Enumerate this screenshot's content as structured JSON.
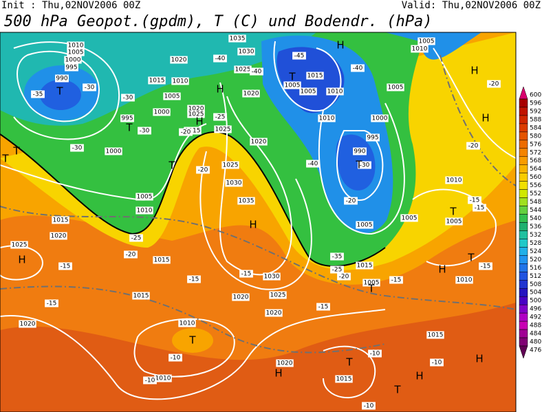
{
  "header": {
    "init": "Init : Thu,02NOV2006 00Z",
    "valid": "Valid: Thu,02NOV2006 00Z",
    "title": "500 hPa Geopot.(gpdm), T (C) und Bodendr. (hPa)"
  },
  "legend": {
    "levels": [
      600,
      596,
      592,
      588,
      584,
      580,
      576,
      572,
      568,
      564,
      560,
      556,
      552,
      548,
      544,
      540,
      536,
      532,
      528,
      524,
      520,
      516,
      512,
      508,
      504,
      500,
      496,
      492,
      488,
      484,
      480,
      476
    ],
    "colors": [
      "#d8006e",
      "#a80000",
      "#c01400",
      "#d02800",
      "#dc3c00",
      "#e45400",
      "#ec6c00",
      "#f48400",
      "#f89c00",
      "#f8b400",
      "#f8cc00",
      "#f0e000",
      "#d0e800",
      "#a0e020",
      "#64d040",
      "#34c050",
      "#20b070",
      "#20c0a0",
      "#20c8c8",
      "#20b0e8",
      "#2094f0",
      "#2074e8",
      "#2054e0",
      "#2034d0",
      "#2414c0",
      "#4800c4",
      "#8000c8",
      "#b000c4",
      "#c800b4",
      "#a00094",
      "#800074",
      "#600054"
    ]
  },
  "map": {
    "pressure_labels": [
      "1010",
      "1005",
      "1000",
      "995",
      "990",
      "1020",
      "1015",
      "1010",
      "1005",
      "1000",
      "995",
      "1020",
      "1025",
      "1000",
      "1005",
      "1010",
      "1015",
      "1020",
      "1025",
      "1035",
      "1030",
      "1025",
      "1020",
      "1020",
      "1025",
      "1030",
      "1035",
      "1005",
      "1005",
      "1010",
      "1015",
      "1010",
      "1005",
      "1000",
      "995",
      "990",
      "1005",
      "1005",
      "1005",
      "1010",
      "1015",
      "1005",
      "1010",
      "1015",
      "1030",
      "1025",
      "1020",
      "1020",
      "1015",
      "1020",
      "1010",
      "1010",
      "1020",
      "1015",
      "1015",
      "1005",
      "1010",
      "1015",
      "1025"
    ],
    "temperature_labels": [
      "-35",
      "-30",
      "-30",
      "-30",
      "-30",
      "-25",
      "-20",
      "-40",
      "-45",
      "-40",
      "-40",
      "-40",
      "-30",
      "-20",
      "-20",
      "-25",
      "-20",
      "-15",
      "-15",
      "-15",
      "-15",
      "-35",
      "-25",
      "-20",
      "-15",
      "-15",
      "-15",
      "-15",
      "-15",
      "-20",
      "-20",
      "-10",
      "-10",
      "-10",
      "-10",
      "-10"
    ],
    "centers": [
      "H",
      "H",
      "H",
      "H",
      "H",
      "T",
      "T",
      "T",
      "T",
      "T",
      "T",
      "T",
      "H",
      "H",
      "H",
      "T",
      "T",
      "T",
      "T",
      "H",
      "T",
      "H",
      "T",
      "H"
    ]
  }
}
